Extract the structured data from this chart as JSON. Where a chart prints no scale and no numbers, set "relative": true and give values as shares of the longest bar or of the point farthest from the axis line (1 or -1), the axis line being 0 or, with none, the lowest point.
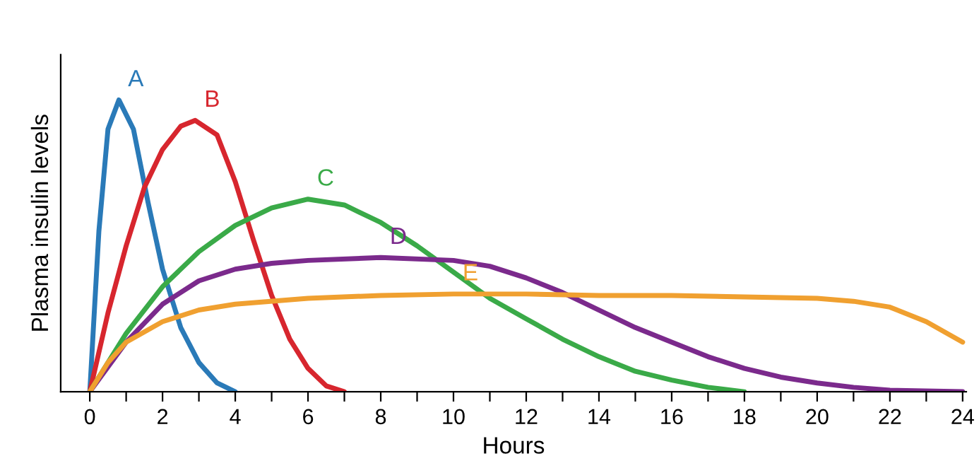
{
  "chart_data": {
    "type": "line",
    "relative": true,
    "xlabel": "Hours",
    "ylabel": "Plasma insulin levels",
    "xlim": [
      -0.8,
      24.1
    ],
    "xticks": [
      0,
      {
        "value": 1,
        "label": null
      },
      2,
      {
        "value": 3,
        "label": null
      },
      4,
      {
        "value": 5,
        "label": null
      },
      6,
      {
        "value": 7,
        "label": null
      },
      8,
      {
        "value": 9,
        "label": null
      },
      10,
      {
        "value": 11,
        "label": null
      },
      12,
      {
        "value": 13,
        "label": null
      },
      14,
      {
        "value": 15,
        "label": null
      },
      16,
      {
        "value": 17,
        "label": null
      },
      18,
      {
        "value": 19,
        "label": null
      },
      20,
      {
        "value": 21,
        "label": null
      },
      22,
      {
        "value": 23,
        "label": null
      },
      24
    ],
    "grid": false,
    "legend": false,
    "marker": "none",
    "line_style": "solid",
    "series": [
      {
        "name": "A",
        "color": "#2a7ab8",
        "x": [
          0,
          0.25,
          0.5,
          0.8,
          1.2,
          1.6,
          2,
          2.5,
          3,
          3.5,
          4
        ],
        "values": [
          0,
          0.55,
          0.9,
          1,
          0.9,
          0.65,
          0.42,
          0.22,
          0.1,
          0.03,
          0
        ]
      },
      {
        "name": "B",
        "color": "#d7262e",
        "x": [
          0,
          0.5,
          1,
          1.5,
          2,
          2.5,
          2.9,
          3.5,
          4,
          4.5,
          5,
          5.5,
          6,
          6.5,
          7
        ],
        "values": [
          0,
          0.27,
          0.5,
          0.7,
          0.83,
          0.91,
          0.93,
          0.88,
          0.72,
          0.52,
          0.33,
          0.18,
          0.08,
          0.02,
          0
        ]
      },
      {
        "name": "C",
        "color": "#3aaa48",
        "x": [
          0,
          1,
          2,
          3,
          4,
          5,
          6,
          7,
          8,
          9,
          10,
          11,
          12,
          13,
          14,
          15,
          16,
          17,
          18
        ],
        "values": [
          0,
          0.2,
          0.36,
          0.48,
          0.57,
          0.63,
          0.66,
          0.64,
          0.58,
          0.5,
          0.41,
          0.32,
          0.25,
          0.18,
          0.12,
          0.07,
          0.04,
          0.015,
          0
        ]
      },
      {
        "name": "D",
        "color": "#7b2a8c",
        "x": [
          0,
          1,
          2,
          3,
          4,
          5,
          6,
          8,
          10,
          11,
          12,
          13,
          14,
          15,
          16,
          17,
          18,
          19,
          20,
          21,
          22,
          24
        ],
        "values": [
          0,
          0.17,
          0.3,
          0.38,
          0.42,
          0.44,
          0.45,
          0.46,
          0.45,
          0.43,
          0.39,
          0.34,
          0.28,
          0.22,
          0.17,
          0.12,
          0.08,
          0.05,
          0.03,
          0.015,
          0.005,
          0
        ]
      },
      {
        "name": "E",
        "color": "#f0a030",
        "x": [
          0,
          0.5,
          1,
          2,
          3,
          4,
          6,
          8,
          10,
          12,
          14,
          16,
          18,
          20,
          21,
          22,
          23,
          24
        ],
        "values": [
          0,
          0.1,
          0.17,
          0.24,
          0.28,
          0.3,
          0.32,
          0.33,
          0.335,
          0.335,
          0.33,
          0.33,
          0.325,
          0.32,
          0.31,
          0.29,
          0.24,
          0.17
        ]
      }
    ]
  }
}
